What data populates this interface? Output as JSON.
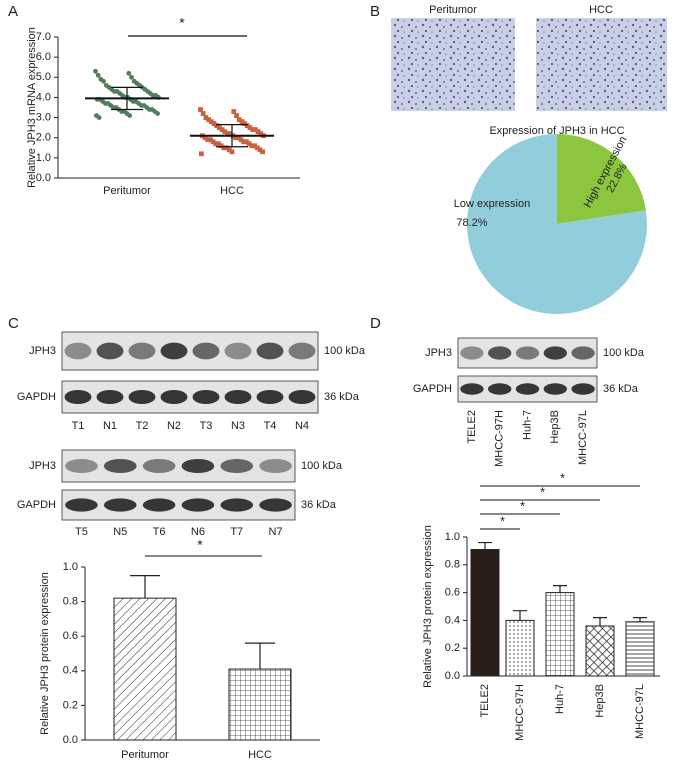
{
  "chart_data": [
    {
      "type": "scatter",
      "panel": "A",
      "ylabel": "Relative JPH3 mRNA expression",
      "categories": [
        "Peritumor",
        "HCC"
      ],
      "colors": [
        "#4f7f5a",
        "#c9623f"
      ],
      "points": [
        [
          5.3,
          5.2,
          5.1,
          5.0,
          4.9,
          4.8,
          4.8,
          4.7,
          4.6,
          4.6,
          4.5,
          4.5,
          4.4,
          4.4,
          4.3,
          4.3,
          4.3,
          4.2,
          4.2,
          4.1,
          4.1,
          4.1,
          4.0,
          4.0,
          4.0,
          3.9,
          3.9,
          3.9,
          3.8,
          3.8,
          3.8,
          3.7,
          3.7,
          3.7,
          3.6,
          3.6,
          3.6,
          3.5,
          3.5,
          3.5,
          3.4,
          3.4,
          3.4,
          3.3,
          3.3,
          3.3,
          3.2,
          3.2,
          3.1,
          3.1,
          3.0
        ],
        [
          3.4,
          3.3,
          3.2,
          3.1,
          3.0,
          2.9,
          2.9,
          2.8,
          2.8,
          2.7,
          2.7,
          2.6,
          2.6,
          2.5,
          2.5,
          2.4,
          2.4,
          2.4,
          2.3,
          2.3,
          2.2,
          2.2,
          2.2,
          2.1,
          2.1,
          2.1,
          2.0,
          2.0,
          2.0,
          1.9,
          1.9,
          1.9,
          1.8,
          1.8,
          1.8,
          1.7,
          1.7,
          1.7,
          1.6,
          1.6,
          1.6,
          1.5,
          1.5,
          1.5,
          1.4,
          1.4,
          1.3,
          1.3,
          1.2
        ]
      ],
      "means": [
        3.95,
        2.1
      ],
      "sd": [
        0.55,
        0.55
      ],
      "ylim": [
        0,
        7
      ],
      "yticks": [
        {
          "value": 0,
          "label": "0.0"
        },
        {
          "value": 1,
          "label": "1.0"
        },
        {
          "value": 2,
          "label": "2.0"
        },
        {
          "value": 3,
          "label": "3.0"
        },
        {
          "value": 4,
          "label": "4.0"
        },
        {
          "value": 5,
          "label": "5.0"
        },
        {
          "value": 6,
          "label": "6.0"
        },
        {
          "value": 7,
          "label": "7.0"
        }
      ],
      "significance": "*"
    },
    {
      "type": "pie",
      "panel": "B",
      "image_labels": [
        "Peritumor",
        "HCC"
      ],
      "title": "Expression of JPH3 in HCC",
      "categories": [
        "High expression",
        "Low expression"
      ],
      "values": [
        22.8,
        78.2
      ],
      "value_labels": [
        "22.8%",
        "78.2%"
      ],
      "colors": [
        "#8cc63f",
        "#92cddc"
      ]
    },
    {
      "type": "bar",
      "panel": "C",
      "blots": [
        {
          "rows": [
            "JPH3",
            "GAPDH"
          ],
          "sizes": [
            "100 kDa",
            "36 kDa"
          ],
          "lanes": [
            "T1",
            "N1",
            "T2",
            "N2",
            "T3",
            "N3",
            "T4",
            "N4"
          ]
        },
        {
          "rows": [
            "JPH3",
            "GAPDH"
          ],
          "sizes": [
            "100 kDa",
            "36 kDa"
          ],
          "lanes": [
            "T5",
            "N5",
            "T6",
            "N6",
            "T7",
            "N7"
          ]
        }
      ],
      "ylabel": "Relative JPH3 protein expression",
      "categories": [
        "Peritumor",
        "HCC"
      ],
      "values": [
        0.82,
        0.41
      ],
      "errors": [
        0.13,
        0.15
      ],
      "patterns": [
        "diagonal",
        "grid"
      ],
      "ylim": [
        0,
        1
      ],
      "yticks": [
        {
          "value": 0,
          "label": "0.0"
        },
        {
          "value": 0.2,
          "label": "0.2"
        },
        {
          "value": 0.4,
          "label": "0.4"
        },
        {
          "value": 0.6,
          "label": "0.6"
        },
        {
          "value": 0.8,
          "label": "0.8"
        },
        {
          "value": 1,
          "label": "1.0"
        }
      ],
      "significance": "*"
    },
    {
      "type": "bar",
      "panel": "D",
      "blots": [
        {
          "rows": [
            "JPH3",
            "GAPDH"
          ],
          "sizes": [
            "100 kDa",
            "36 kDa"
          ],
          "lanes": [
            "TELE2",
            "MHCC-97H",
            "Huh-7",
            "Hep3B",
            "MHCC-97L"
          ]
        }
      ],
      "ylabel": "Relative JPH3 protein expression",
      "categories": [
        "TELE2",
        "MHCC-97H",
        "Huh-7",
        "Hep3B",
        "MHCC-97L"
      ],
      "values": [
        0.91,
        0.4,
        0.6,
        0.36,
        0.39
      ],
      "errors": [
        0.05,
        0.07,
        0.05,
        0.06,
        0.03
      ],
      "patterns": [
        "solid",
        "dots",
        "grid",
        "diamond",
        "hlines"
      ],
      "ylim": [
        0,
        1
      ],
      "yticks": [
        {
          "value": 0,
          "label": "0.0"
        },
        {
          "value": 0.2,
          "label": "0.2"
        },
        {
          "value": 0.4,
          "label": "0.4"
        },
        {
          "value": 0.6,
          "label": "0.6"
        },
        {
          "value": 0.8,
          "label": "0.8"
        },
        {
          "value": 1,
          "label": "1.0"
        }
      ],
      "significance": [
        "*",
        "*",
        "*",
        "*"
      ]
    }
  ]
}
